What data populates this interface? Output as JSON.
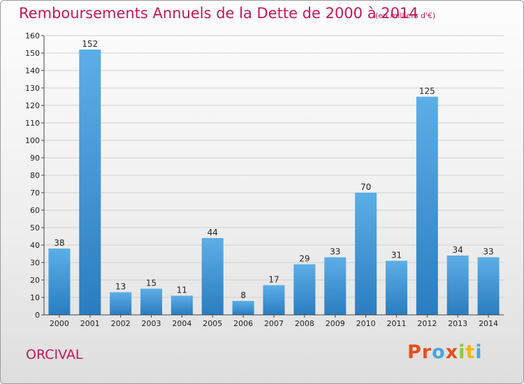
{
  "title": "Remboursements Annuels de la Dette de 2000 à 2014",
  "subtitle": "(en milliers d'€)",
  "commune": "ORCIVAL",
  "logo": {
    "letters": [
      "P",
      "r",
      "o",
      "x",
      "i",
      "t",
      "i"
    ],
    "colors": [
      "#e94e1b",
      "#e94e1b",
      "#4aa3df",
      "#e94e1b",
      "#8dc63f",
      "#f7b500",
      "#4aa3df"
    ]
  },
  "colors": {
    "bar_top": "#5daee6",
    "bar_bottom": "#2a7dc0",
    "title": "#c2185b"
  },
  "chart_data": {
    "type": "bar",
    "categories": [
      "2000",
      "2001",
      "2002",
      "2003",
      "2004",
      "2005",
      "2006",
      "2007",
      "2008",
      "2009",
      "2010",
      "2011",
      "2012",
      "2013",
      "2014"
    ],
    "values": [
      38,
      152,
      13,
      15,
      11,
      44,
      8,
      17,
      29,
      33,
      70,
      31,
      125,
      34,
      33
    ],
    "ylim": [
      0,
      160
    ],
    "yticks": [
      0,
      10,
      20,
      30,
      40,
      50,
      60,
      70,
      80,
      90,
      100,
      110,
      120,
      130,
      140,
      150,
      160
    ],
    "grid": true
  }
}
